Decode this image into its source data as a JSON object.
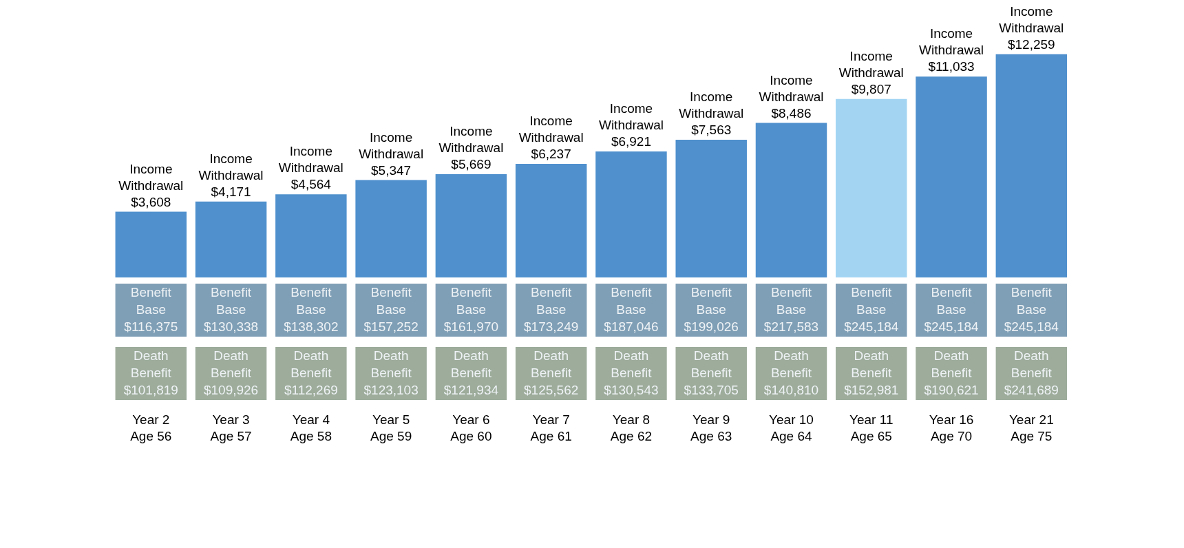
{
  "chart_data": {
    "type": "bar",
    "categories": [
      "Year 2\nAge 56",
      "Year 3\nAge 57",
      "Year 4\nAge 58",
      "Year 5\nAge 59",
      "Year 6\nAge 60",
      "Year 7\nAge 61",
      "Year 8\nAge 62",
      "Year 9\nAge 63",
      "Year 10\nAge 64",
      "Year 11\nAge 65",
      "Year 16\nAge 70",
      "Year 21\nAge 75"
    ],
    "values": [
      3608,
      4171,
      4564,
      5347,
      5669,
      6237,
      6921,
      7563,
      8486,
      9807,
      11033,
      12259
    ],
    "colors": [
      "#4f90cd",
      "#4f90cd",
      "#4f90cd",
      "#4f90cd",
      "#4f90cd",
      "#4f90cd",
      "#4f90cd",
      "#4f90cd",
      "#4f90cd",
      "#a3d5f3",
      "#4f90cd",
      "#4f90cd"
    ],
    "value_labels": [
      "Income\nWithdrawal\n$3,608",
      "Income\nWithdrawal\n$4,171",
      "Income\nWithdrawal\n$4,564",
      "Income\nWithdrawal\n$5,347",
      "Income\nWithdrawal\n$5,669",
      "Income\nWithdrawal\n$6,237",
      "Income\nWithdrawal\n$6,921",
      "Income\nWithdrawal\n$7,563",
      "Income\nWithdrawal\n$8,486",
      "Income\nWithdrawal\n$9,807",
      "Income\nWithdrawal\n$11,033",
      "Income\nWithdrawal\n$12,259"
    ],
    "annotations": [
      "Benefit\nBase\n$116,375",
      "Benefit\nBase\n$130,338",
      "Benefit\nBase\n$138,302",
      "Benefit\nBase\n$157,252",
      "Benefit\nBase\n$161,970",
      "Benefit\nBase\n$173,249",
      "Benefit\nBase\n$187,046",
      "Benefit\nBase\n$199,026",
      "Benefit\nBase\n$217,583",
      "Benefit\nBase\n$245,184",
      "Benefit\nBase\n$245,184",
      "Benefit\nBase\n$245,184",
      "Death\nBenefit\n$101,819",
      "Death\nBenefit\n$109,926",
      "Death\nBenefit\n$112,269",
      "Death\nBenefit\n$123,103",
      "Death\nBenefit\n$121,934",
      "Death\nBenefit\n$125,562",
      "Death\nBenefit\n$130,543",
      "Death\nBenefit\n$133,705",
      "Death\nBenefit\n$140,810",
      "Death\nBenefit\n$152,981",
      "Death\nBenefit\n$190,621",
      "Death\nBenefit\n$241,689"
    ]
  }
}
